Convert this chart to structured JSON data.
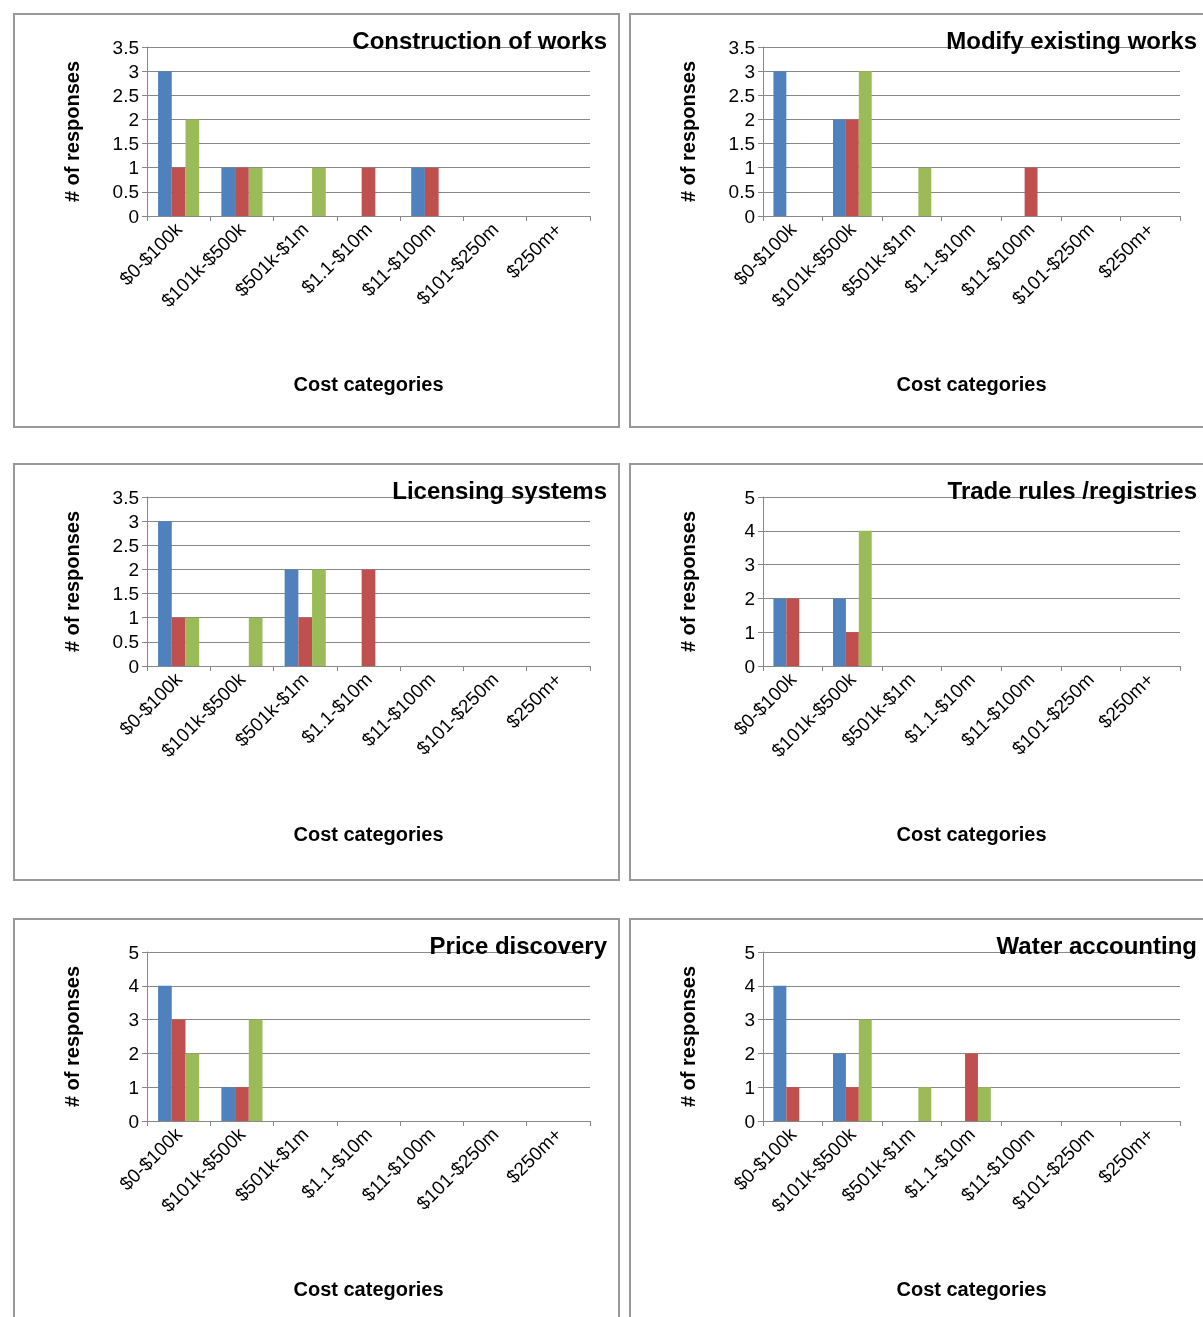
{
  "chart_data": [
    {
      "type": "bar",
      "title": "Construction of works",
      "xlabel": "Cost categories",
      "ylabel": "# of responses",
      "categories": [
        "$0-$100k",
        "$101k-$500k",
        "$501k-$1m",
        "$1.1-$10m",
        "$11-$100m",
        "$101-$250m",
        "$250m+"
      ],
      "series": [
        {
          "color": "#4f81bd",
          "values": [
            3,
            1,
            0,
            0,
            1,
            0,
            0
          ]
        },
        {
          "color": "#c0504d",
          "values": [
            1,
            1,
            0,
            1,
            1,
            0,
            0
          ]
        },
        {
          "color": "#9bbb59",
          "values": [
            2,
            1,
            1,
            0,
            0,
            0,
            0
          ]
        }
      ],
      "ylim": [
        0,
        3.5
      ],
      "yticks": [
        0,
        0.5,
        1,
        1.5,
        2,
        2.5,
        3,
        3.5
      ],
      "grid": "y"
    },
    {
      "type": "bar",
      "title": "Modify existing works",
      "xlabel": "Cost categories",
      "ylabel": "# of responses",
      "categories": [
        "$0-$100k",
        "$101k-$500k",
        "$501k-$1m",
        "$1.1-$10m",
        "$11-$100m",
        "$101-$250m",
        "$250m+"
      ],
      "series": [
        {
          "color": "#4f81bd",
          "values": [
            3,
            2,
            0,
            0,
            0,
            0,
            0
          ]
        },
        {
          "color": "#c0504d",
          "values": [
            0,
            2,
            0,
            0,
            1,
            0,
            0
          ]
        },
        {
          "color": "#9bbb59",
          "values": [
            0,
            3,
            1,
            0,
            0,
            0,
            0
          ]
        }
      ],
      "ylim": [
        0,
        3.5
      ],
      "yticks": [
        0,
        0.5,
        1,
        1.5,
        2,
        2.5,
        3,
        3.5
      ],
      "grid": "y"
    },
    {
      "type": "bar",
      "title": "Licensing systems",
      "xlabel": "Cost categories",
      "ylabel": "# of responses",
      "categories": [
        "$0-$100k",
        "$101k-$500k",
        "$501k-$1m",
        "$1.1-$10m",
        "$11-$100m",
        "$101-$250m",
        "$250m+"
      ],
      "series": [
        {
          "color": "#4f81bd",
          "values": [
            3,
            0,
            2,
            0,
            0,
            0,
            0
          ]
        },
        {
          "color": "#c0504d",
          "values": [
            1,
            0,
            1,
            2,
            0,
            0,
            0
          ]
        },
        {
          "color": "#9bbb59",
          "values": [
            1,
            1,
            2,
            0,
            0,
            0,
            0
          ]
        }
      ],
      "ylim": [
        0,
        3.5
      ],
      "yticks": [
        0,
        0.5,
        1,
        1.5,
        2,
        2.5,
        3,
        3.5
      ],
      "grid": "y"
    },
    {
      "type": "bar",
      "title": "Trade rules /registries",
      "xlabel": "Cost categories",
      "ylabel": "# of responses",
      "categories": [
        "$0-$100k",
        "$101k-$500k",
        "$501k-$1m",
        "$1.1-$10m",
        "$11-$100m",
        "$101-$250m",
        "$250m+"
      ],
      "series": [
        {
          "color": "#4f81bd",
          "values": [
            2,
            2,
            0,
            0,
            0,
            0,
            0
          ]
        },
        {
          "color": "#c0504d",
          "values": [
            2,
            1,
            0,
            0,
            0,
            0,
            0
          ]
        },
        {
          "color": "#9bbb59",
          "values": [
            0,
            4,
            0,
            0,
            0,
            0,
            0
          ]
        }
      ],
      "ylim": [
        0,
        5
      ],
      "yticks": [
        0,
        1,
        2,
        3,
        4,
        5
      ],
      "grid": "y"
    },
    {
      "type": "bar",
      "title": "Price discovery",
      "xlabel": "Cost categories",
      "ylabel": "# of responses",
      "categories": [
        "$0-$100k",
        "$101k-$500k",
        "$501k-$1m",
        "$1.1-$10m",
        "$11-$100m",
        "$101-$250m",
        "$250m+"
      ],
      "series": [
        {
          "color": "#4f81bd",
          "values": [
            4,
            1,
            0,
            0,
            0,
            0,
            0
          ]
        },
        {
          "color": "#c0504d",
          "values": [
            3,
            1,
            0,
            0,
            0,
            0,
            0
          ]
        },
        {
          "color": "#9bbb59",
          "values": [
            2,
            3,
            0,
            0,
            0,
            0,
            0
          ]
        }
      ],
      "ylim": [
        0,
        5
      ],
      "yticks": [
        0,
        1,
        2,
        3,
        4,
        5
      ],
      "grid": "y"
    },
    {
      "type": "bar",
      "title": "Water accounting",
      "xlabel": "Cost categories",
      "ylabel": "# of responses",
      "categories": [
        "$0-$100k",
        "$101k-$500k",
        "$501k-$1m",
        "$1.1-$10m",
        "$11-$100m",
        "$101-$250m",
        "$250m+"
      ],
      "series": [
        {
          "color": "#4f81bd",
          "values": [
            4,
            2,
            0,
            0,
            0,
            0,
            0
          ]
        },
        {
          "color": "#c0504d",
          "values": [
            1,
            1,
            0,
            2,
            0,
            0,
            0
          ]
        },
        {
          "color": "#9bbb59",
          "values": [
            0,
            3,
            1,
            1,
            0,
            0,
            0
          ]
        }
      ],
      "ylim": [
        0,
        5
      ],
      "yticks": [
        0,
        1,
        2,
        3,
        4,
        5
      ],
      "grid": "y"
    }
  ]
}
